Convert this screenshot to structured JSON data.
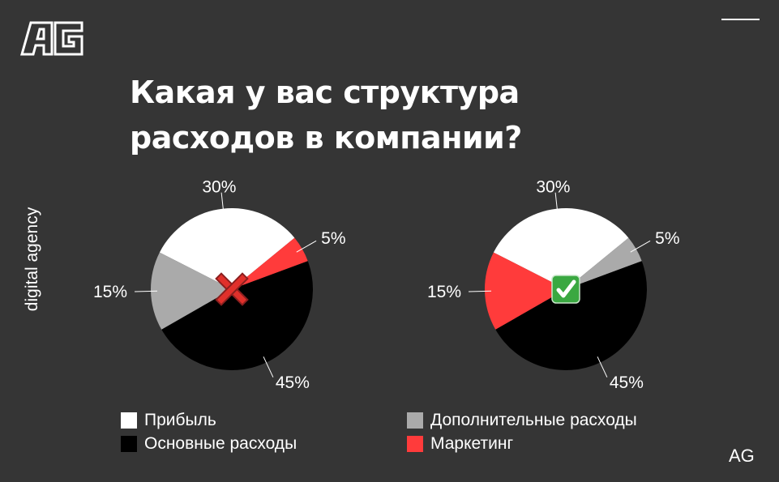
{
  "brand": {
    "logo_text": "AG",
    "tagline": "digital agency",
    "corner_mark": "AG"
  },
  "title": {
    "line1": "Какая у вас структура",
    "line2": "расходов в компании?"
  },
  "colors": {
    "background": "#353535",
    "profit": "#ffffff",
    "core": "#000000",
    "extra": "#aaaaaa",
    "marketing": "#ff3b3b"
  },
  "icons": {
    "wrong": "cross-mark-icon",
    "right": "check-mark-icon"
  },
  "chart_data": [
    {
      "type": "pie",
      "verdict": "wrong",
      "slices": [
        {
          "name": "Прибыль",
          "value": 30,
          "label": "30%",
          "color": "#ffffff"
        },
        {
          "name": "Маркетинг",
          "value": 5,
          "label": "5%",
          "color": "#ff3b3b"
        },
        {
          "name": "Основные расходы",
          "value": 45,
          "label": "45%",
          "color": "#000000"
        },
        {
          "name": "Дополнительные расходы",
          "value": 15,
          "label": "15%",
          "color": "#aaaaaa"
        }
      ]
    },
    {
      "type": "pie",
      "verdict": "right",
      "slices": [
        {
          "name": "Прибыль",
          "value": 30,
          "label": "30%",
          "color": "#ffffff"
        },
        {
          "name": "Дополнительные расходы",
          "value": 5,
          "label": "5%",
          "color": "#aaaaaa"
        },
        {
          "name": "Основные расходы",
          "value": 45,
          "label": "45%",
          "color": "#000000"
        },
        {
          "name": "Маркетинг",
          "value": 15,
          "label": "15%",
          "color": "#ff3b3b"
        }
      ]
    }
  ],
  "legend": [
    {
      "label": "Прибыль",
      "color": "#ffffff"
    },
    {
      "label": "Основные расходы",
      "color": "#000000"
    },
    {
      "label": "Дополнительные расходы",
      "color": "#aaaaaa"
    },
    {
      "label": "Маркетинг",
      "color": "#ff3b3b"
    }
  ]
}
